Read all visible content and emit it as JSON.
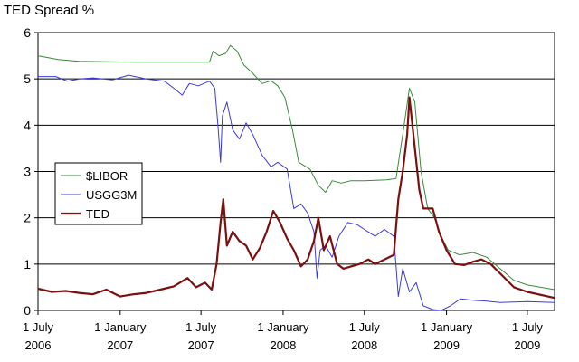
{
  "chart_data": {
    "type": "line",
    "title": "TED Spread %",
    "xlabel": "",
    "ylabel": "",
    "ylim": [
      0,
      6
    ],
    "yticks": [
      "0",
      "1",
      "2",
      "3",
      "4",
      "5",
      "6"
    ],
    "grid": "horizontal",
    "legend_position": "left",
    "xticks": [
      {
        "date": "2006-07-01",
        "line1": "1 July",
        "line2": "2006"
      },
      {
        "date": "2007-01-01",
        "line1": "1 January",
        "line2": "2007"
      },
      {
        "date": "2007-07-01",
        "line1": "1 July",
        "line2": "2007"
      },
      {
        "date": "2008-01-01",
        "line1": "1 January",
        "line2": "2008"
      },
      {
        "date": "2008-07-01",
        "line1": "1 July",
        "line2": "2008"
      },
      {
        "date": "2009-01-01",
        "line1": "1 January",
        "line2": "2009"
      },
      {
        "date": "2009-07-01",
        "line1": "1 July",
        "line2": "2009"
      }
    ],
    "xrange": [
      "2006-07-01",
      "2009-08-31"
    ],
    "series": [
      {
        "name": "$LIBOR",
        "color": "#3a8a3a",
        "width": 1,
        "points": [
          [
            "2006-07-01",
            5.5
          ],
          [
            "2006-08-15",
            5.42
          ],
          [
            "2006-10-01",
            5.38
          ],
          [
            "2006-12-01",
            5.37
          ],
          [
            "2007-02-01",
            5.36
          ],
          [
            "2007-05-01",
            5.36
          ],
          [
            "2007-07-20",
            5.36
          ],
          [
            "2007-07-28",
            5.6
          ],
          [
            "2007-08-10",
            5.5
          ],
          [
            "2007-08-25",
            5.55
          ],
          [
            "2007-09-05",
            5.72
          ],
          [
            "2007-09-20",
            5.6
          ],
          [
            "2007-10-05",
            5.3
          ],
          [
            "2007-10-25",
            5.12
          ],
          [
            "2007-11-15",
            4.9
          ],
          [
            "2007-12-05",
            4.96
          ],
          [
            "2007-12-20",
            4.85
          ],
          [
            "2008-01-05",
            4.6
          ],
          [
            "2008-01-22",
            3.9
          ],
          [
            "2008-02-05",
            3.2
          ],
          [
            "2008-03-01",
            3.05
          ],
          [
            "2008-03-20",
            2.7
          ],
          [
            "2008-04-05",
            2.55
          ],
          [
            "2008-04-20",
            2.8
          ],
          [
            "2008-05-10",
            2.75
          ],
          [
            "2008-06-01",
            2.8
          ],
          [
            "2008-07-01",
            2.8
          ],
          [
            "2008-08-20",
            2.82
          ],
          [
            "2008-09-10",
            2.85
          ],
          [
            "2008-09-25",
            3.8
          ],
          [
            "2008-10-10",
            4.8
          ],
          [
            "2008-10-22",
            4.5
          ],
          [
            "2008-11-05",
            3.0
          ],
          [
            "2008-11-20",
            2.2
          ],
          [
            "2008-12-05",
            2.0
          ],
          [
            "2008-12-20",
            1.6
          ],
          [
            "2009-01-05",
            1.3
          ],
          [
            "2009-01-30",
            1.2
          ],
          [
            "2009-03-01",
            1.25
          ],
          [
            "2009-04-01",
            1.15
          ],
          [
            "2009-05-01",
            0.9
          ],
          [
            "2009-06-01",
            0.65
          ],
          [
            "2009-07-01",
            0.55
          ],
          [
            "2009-08-31",
            0.45
          ]
        ]
      },
      {
        "name": "USGG3M",
        "color": "#3b3bdb",
        "width": 1,
        "points": [
          [
            "2006-07-01",
            5.05
          ],
          [
            "2006-08-10",
            5.05
          ],
          [
            "2006-09-05",
            4.95
          ],
          [
            "2006-10-01",
            5.0
          ],
          [
            "2006-11-01",
            5.02
          ],
          [
            "2006-12-15",
            4.98
          ],
          [
            "2007-01-20",
            5.08
          ],
          [
            "2007-03-01",
            5.0
          ],
          [
            "2007-04-10",
            4.95
          ],
          [
            "2007-05-01",
            4.8
          ],
          [
            "2007-05-20",
            4.65
          ],
          [
            "2007-06-05",
            4.9
          ],
          [
            "2007-06-25",
            4.85
          ],
          [
            "2007-07-20",
            4.95
          ],
          [
            "2007-08-01",
            4.8
          ],
          [
            "2007-08-08",
            4.0
          ],
          [
            "2007-08-14",
            3.2
          ],
          [
            "2007-08-18",
            4.2
          ],
          [
            "2007-08-28",
            4.5
          ],
          [
            "2007-09-10",
            3.9
          ],
          [
            "2007-09-25",
            3.7
          ],
          [
            "2007-10-10",
            4.05
          ],
          [
            "2007-10-25",
            3.8
          ],
          [
            "2007-11-15",
            3.35
          ],
          [
            "2007-12-05",
            3.1
          ],
          [
            "2007-12-20",
            3.2
          ],
          [
            "2008-01-10",
            3.05
          ],
          [
            "2008-01-25",
            2.2
          ],
          [
            "2008-02-10",
            2.3
          ],
          [
            "2008-02-25",
            2.1
          ],
          [
            "2008-03-10",
            1.7
          ],
          [
            "2008-03-17",
            0.7
          ],
          [
            "2008-03-24",
            1.3
          ],
          [
            "2008-04-05",
            1.4
          ],
          [
            "2008-04-20",
            1.15
          ],
          [
            "2008-05-05",
            1.6
          ],
          [
            "2008-05-25",
            1.9
          ],
          [
            "2008-06-15",
            1.85
          ],
          [
            "2008-07-01",
            1.75
          ],
          [
            "2008-07-25",
            1.6
          ],
          [
            "2008-08-15",
            1.75
          ],
          [
            "2008-09-05",
            1.6
          ],
          [
            "2008-09-15",
            0.3
          ],
          [
            "2008-09-25",
            0.9
          ],
          [
            "2008-10-10",
            0.4
          ],
          [
            "2008-10-25",
            0.6
          ],
          [
            "2008-11-10",
            0.1
          ],
          [
            "2008-12-01",
            0.02
          ],
          [
            "2008-12-20",
            0.0
          ],
          [
            "2009-01-10",
            0.1
          ],
          [
            "2009-02-01",
            0.25
          ],
          [
            "2009-03-01",
            0.22
          ],
          [
            "2009-04-01",
            0.2
          ],
          [
            "2009-05-01",
            0.17
          ],
          [
            "2009-06-01",
            0.18
          ],
          [
            "2009-07-01",
            0.19
          ],
          [
            "2009-08-31",
            0.17
          ]
        ]
      },
      {
        "name": "TED",
        "color": "#7b1010",
        "width": 2.2,
        "points": [
          [
            "2006-07-01",
            0.47
          ],
          [
            "2006-08-01",
            0.4
          ],
          [
            "2006-09-01",
            0.42
          ],
          [
            "2006-10-01",
            0.38
          ],
          [
            "2006-11-01",
            0.35
          ],
          [
            "2006-12-01",
            0.45
          ],
          [
            "2007-01-01",
            0.3
          ],
          [
            "2007-02-01",
            0.35
          ],
          [
            "2007-03-01",
            0.38
          ],
          [
            "2007-04-01",
            0.45
          ],
          [
            "2007-05-01",
            0.52
          ],
          [
            "2007-06-01",
            0.7
          ],
          [
            "2007-06-20",
            0.5
          ],
          [
            "2007-07-10",
            0.6
          ],
          [
            "2007-07-25",
            0.45
          ],
          [
            "2007-08-05",
            1.0
          ],
          [
            "2007-08-14",
            1.9
          ],
          [
            "2007-08-20",
            2.4
          ],
          [
            "2007-08-28",
            1.4
          ],
          [
            "2007-09-10",
            1.7
          ],
          [
            "2007-09-25",
            1.5
          ],
          [
            "2007-10-10",
            1.4
          ],
          [
            "2007-10-25",
            1.1
          ],
          [
            "2007-11-10",
            1.35
          ],
          [
            "2007-11-25",
            1.7
          ],
          [
            "2007-12-10",
            2.15
          ],
          [
            "2007-12-25",
            1.9
          ],
          [
            "2008-01-10",
            1.55
          ],
          [
            "2008-01-25",
            1.3
          ],
          [
            "2008-02-10",
            0.95
          ],
          [
            "2008-02-25",
            1.1
          ],
          [
            "2008-03-10",
            1.5
          ],
          [
            "2008-03-20",
            2.0
          ],
          [
            "2008-04-01",
            1.3
          ],
          [
            "2008-04-15",
            1.6
          ],
          [
            "2008-05-01",
            1.0
          ],
          [
            "2008-05-15",
            0.9
          ],
          [
            "2008-06-01",
            0.95
          ],
          [
            "2008-06-20",
            1.0
          ],
          [
            "2008-07-10",
            1.1
          ],
          [
            "2008-07-25",
            1.0
          ],
          [
            "2008-08-15",
            1.1
          ],
          [
            "2008-09-05",
            1.2
          ],
          [
            "2008-09-15",
            2.4
          ],
          [
            "2008-09-25",
            3.0
          ],
          [
            "2008-10-05",
            3.8
          ],
          [
            "2008-10-10",
            4.6
          ],
          [
            "2008-10-20",
            3.7
          ],
          [
            "2008-11-01",
            2.6
          ],
          [
            "2008-11-10",
            2.2
          ],
          [
            "2008-12-01",
            2.2
          ],
          [
            "2008-12-15",
            1.7
          ],
          [
            "2009-01-01",
            1.3
          ],
          [
            "2009-01-20",
            1.0
          ],
          [
            "2009-02-10",
            0.98
          ],
          [
            "2009-03-01",
            1.05
          ],
          [
            "2009-03-20",
            1.1
          ],
          [
            "2009-04-10",
            1.0
          ],
          [
            "2009-05-01",
            0.8
          ],
          [
            "2009-06-01",
            0.5
          ],
          [
            "2009-07-01",
            0.4
          ],
          [
            "2009-08-31",
            0.27
          ]
        ]
      }
    ]
  }
}
